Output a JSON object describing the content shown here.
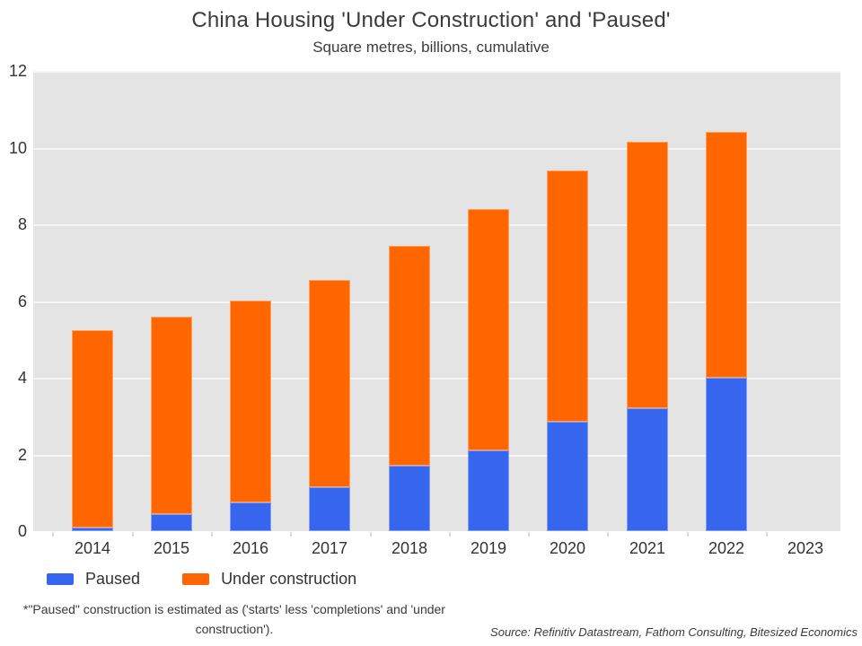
{
  "title": "China Housing 'Under Construction' and 'Paused'",
  "subtitle": "Square metres, billions, cumulative",
  "legend": [
    {
      "label": "Paused",
      "color": "#3766ee",
      "slug": "paused"
    },
    {
      "label": "Under construction",
      "color": "#ff6600",
      "slug": "under-construction"
    }
  ],
  "footnote_lines": [
    "*\"Paused\" construction is estimated as ('starts' less 'completions' and 'under",
    "construction')."
  ],
  "source": "Source: Refinitiv Datastream, Fathom Consulting, Bitesized Economics",
  "chart_data": {
    "type": "bar",
    "stacked": true,
    "title": "China Housing 'Under Construction' and 'Paused'",
    "subtitle": "Square metres, billions, cumulative",
    "categories": [
      "2014",
      "2015",
      "2016",
      "2017",
      "2018",
      "2019",
      "2020",
      "2021",
      "2022",
      "2023"
    ],
    "series": [
      {
        "name": "Paused",
        "color": "#3766ee",
        "values": [
          0.1,
          0.45,
          0.75,
          1.15,
          1.7,
          2.1,
          2.85,
          3.2,
          4.0,
          null
        ]
      },
      {
        "name": "Under construction",
        "color": "#ff6600",
        "values": [
          5.15,
          5.15,
          5.25,
          5.4,
          5.75,
          6.3,
          6.55,
          6.95,
          6.4,
          null
        ]
      }
    ],
    "totals": [
      5.25,
      5.6,
      6.0,
      6.55,
      7.45,
      8.4,
      9.4,
      10.15,
      10.4,
      null
    ],
    "xlabel": "",
    "ylabel": "",
    "ylim": [
      0,
      12
    ],
    "yticks": [
      0,
      2,
      4,
      6,
      8,
      10,
      12
    ],
    "grid": true,
    "plot_bg": "#e4e4e4",
    "grid_color": "#f6f6f6",
    "legend_position": "bottom-left"
  }
}
